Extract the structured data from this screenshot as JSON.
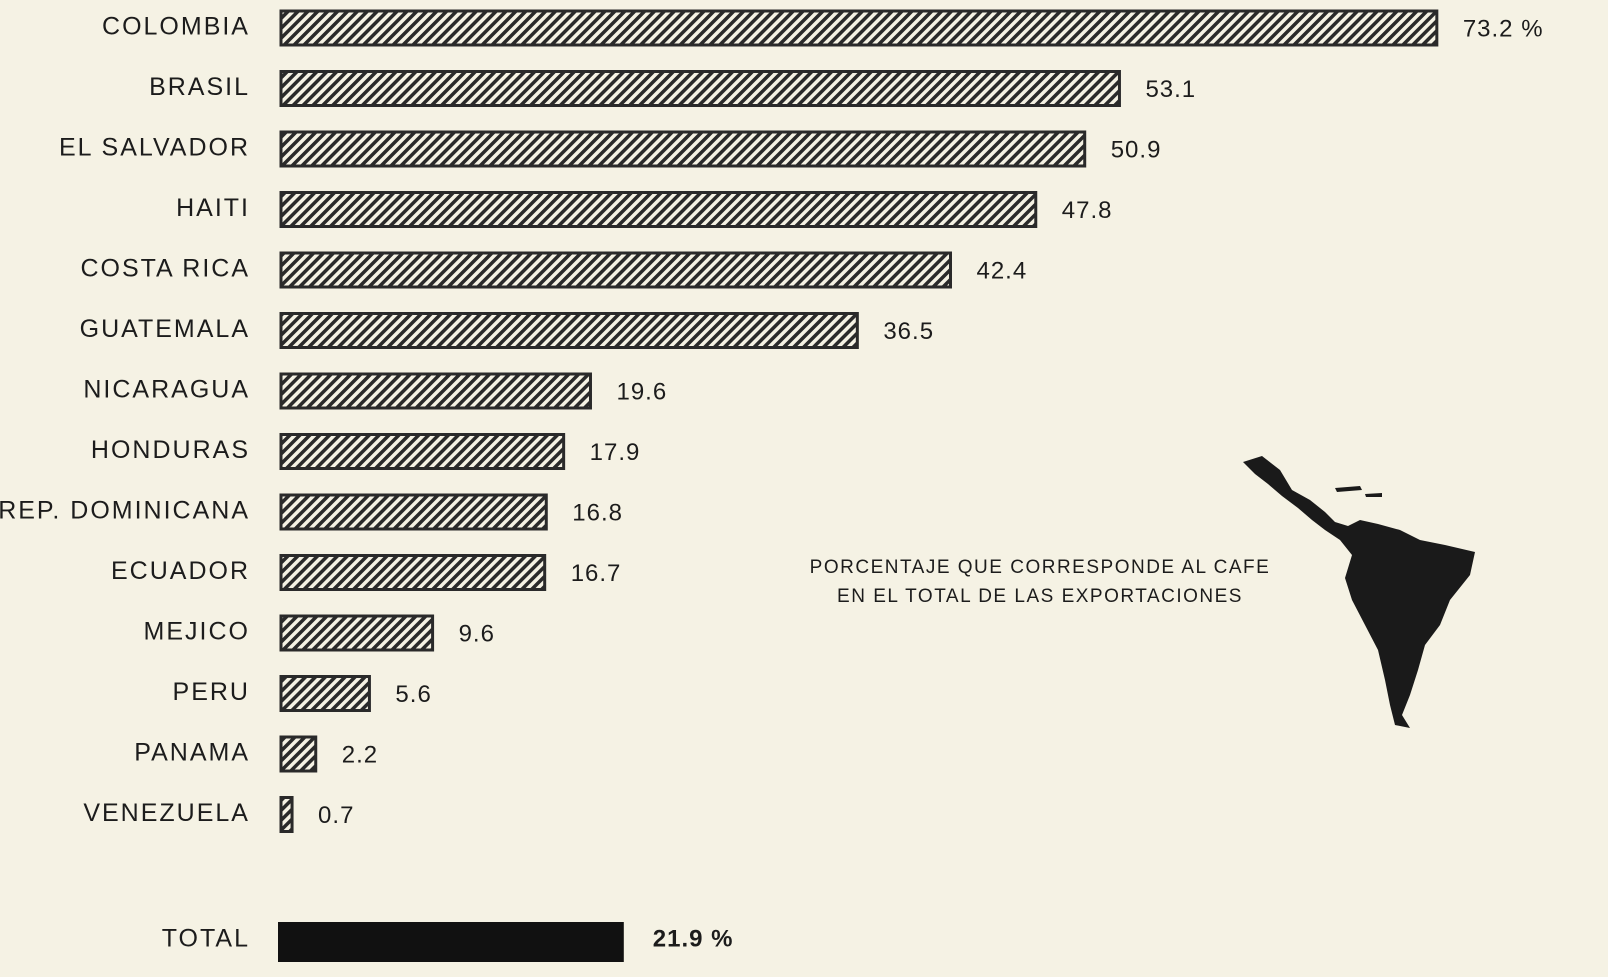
{
  "chart_data": {
    "type": "barh",
    "categories": [
      "COLOMBIA",
      "BRASIL",
      "EL SALVADOR",
      "HAITI",
      "COSTA RICA",
      "GUATEMALA",
      "NICARAGUA",
      "HONDURAS",
      "REP. DOMINICANA",
      "ECUADOR",
      "MEJICO",
      "PERU",
      "PANAMA",
      "VENEZUELA"
    ],
    "values": [
      73.2,
      53.1,
      50.9,
      47.8,
      42.4,
      36.5,
      19.6,
      17.9,
      16.8,
      16.7,
      9.6,
      5.6,
      2.2,
      0.7
    ],
    "value_labels": [
      "73.2 %",
      "53.1",
      "50.9",
      "47.8",
      "42.4",
      "36.5",
      "19.6",
      "17.9",
      "16.8",
      "16.7",
      "9.6",
      "5.6",
      "2.2",
      "0.7"
    ],
    "color": "#2a2a2a",
    "total": {
      "label": "TOTAL",
      "value": 21.9,
      "value_label": "21.9 %",
      "color": "#111111"
    },
    "annotation": [
      "PORCENTAJE QUE CORRESPONDE AL CAFE",
      "EN EL TOTAL DE LAS EXPORTACIONES"
    ],
    "xlim": [
      0,
      75
    ]
  }
}
